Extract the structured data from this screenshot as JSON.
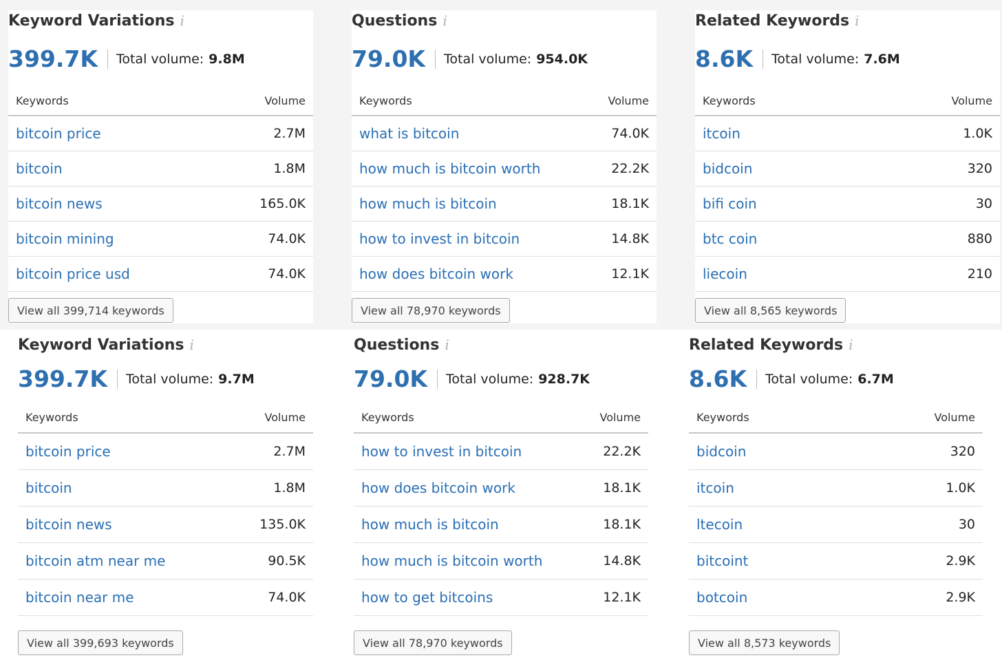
{
  "common": {
    "info_icon": "i",
    "total_volume_label": "Total volume:",
    "keywords_col": "Keywords",
    "volume_col": "Volume"
  },
  "widgets": [
    {
      "title": "Keyword Variations",
      "count": "399.7K",
      "total_volume": "9.8M",
      "rows": [
        {
          "keyword": "bitcoin price",
          "volume": "2.7M"
        },
        {
          "keyword": "bitcoin",
          "volume": "1.8M"
        },
        {
          "keyword": "bitcoin news",
          "volume": "165.0K"
        },
        {
          "keyword": "bitcoin mining",
          "volume": "74.0K"
        },
        {
          "keyword": "bitcoin price usd",
          "volume": "74.0K"
        }
      ],
      "view_all": "View all 399,714 keywords"
    },
    {
      "title": "Questions",
      "count": "79.0K",
      "total_volume": "954.0K",
      "rows": [
        {
          "keyword": "what is bitcoin",
          "volume": "74.0K"
        },
        {
          "keyword": "how much is bitcoin worth",
          "volume": "22.2K"
        },
        {
          "keyword": "how much is bitcoin",
          "volume": "18.1K"
        },
        {
          "keyword": "how to invest in bitcoin",
          "volume": "14.8K"
        },
        {
          "keyword": "how does bitcoin work",
          "volume": "12.1K"
        }
      ],
      "view_all": "View all 78,970 keywords"
    },
    {
      "title": "Related Keywords",
      "count": "8.6K",
      "total_volume": "7.6M",
      "rows": [
        {
          "keyword": "itcoin",
          "volume": "1.0K"
        },
        {
          "keyword": "bidcoin",
          "volume": "320"
        },
        {
          "keyword": "bifi coin",
          "volume": "30"
        },
        {
          "keyword": "btc coin",
          "volume": "880"
        },
        {
          "keyword": "liecoin",
          "volume": "210"
        }
      ],
      "view_all": "View all 8,565 keywords"
    },
    {
      "title": "Keyword Variations",
      "count": "399.7K",
      "total_volume": "9.7M",
      "rows": [
        {
          "keyword": "bitcoin price",
          "volume": "2.7M"
        },
        {
          "keyword": "bitcoin",
          "volume": "1.8M"
        },
        {
          "keyword": "bitcoin news",
          "volume": "135.0K"
        },
        {
          "keyword": "bitcoin atm near me",
          "volume": "90.5K"
        },
        {
          "keyword": "bitcoin near me",
          "volume": "74.0K"
        }
      ],
      "view_all": "View all 399,693 keywords"
    },
    {
      "title": "Questions",
      "count": "79.0K",
      "total_volume": "928.7K",
      "rows": [
        {
          "keyword": "how to invest in bitcoin",
          "volume": "22.2K"
        },
        {
          "keyword": "how does bitcoin work",
          "volume": "18.1K"
        },
        {
          "keyword": "how much is bitcoin",
          "volume": "18.1K"
        },
        {
          "keyword": "how much is bitcoin worth",
          "volume": "14.8K"
        },
        {
          "keyword": "how to get bitcoins",
          "volume": "12.1K"
        }
      ],
      "view_all": "View all 78,970 keywords"
    },
    {
      "title": "Related Keywords",
      "count": "8.6K",
      "total_volume": "6.7M",
      "rows": [
        {
          "keyword": "bidcoin",
          "volume": "320"
        },
        {
          "keyword": "itcoin",
          "volume": "1.0K"
        },
        {
          "keyword": "ltecoin",
          "volume": "30"
        },
        {
          "keyword": "bitcoint",
          "volume": "2.9K"
        },
        {
          "keyword": "botcoin",
          "volume": "2.9K"
        }
      ],
      "view_all": "View all 8,573 keywords"
    }
  ]
}
